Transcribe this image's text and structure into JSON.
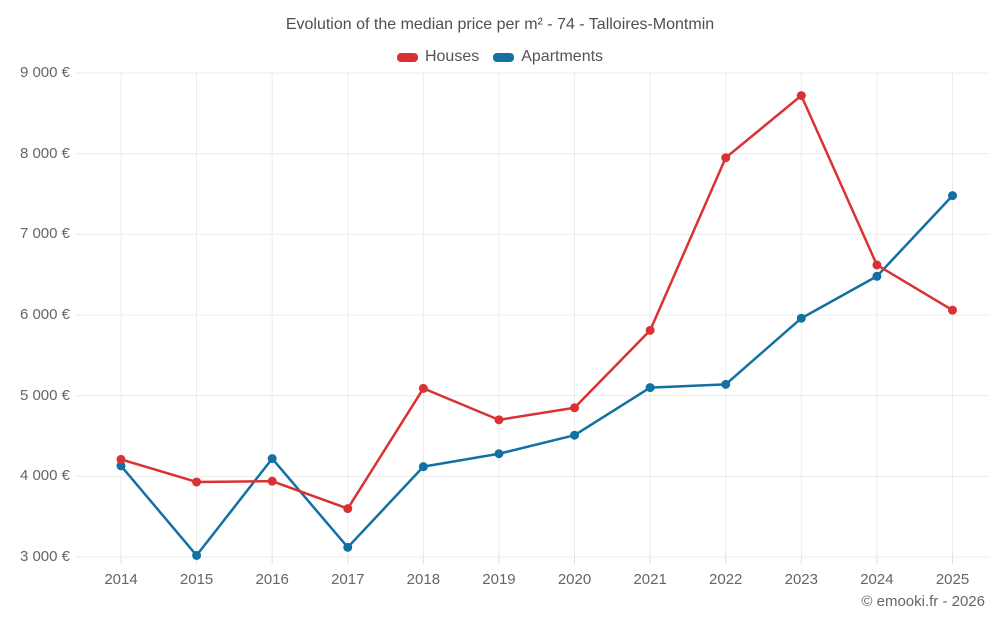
{
  "chart_data": {
    "type": "line",
    "title": "Evolution of the median price per m² - 74 - Talloires-Montmin",
    "categories": [
      "2014",
      "2015",
      "2016",
      "2017",
      "2018",
      "2019",
      "2020",
      "2021",
      "2022",
      "2023",
      "2024",
      "2025"
    ],
    "series": [
      {
        "name": "Houses",
        "color": "#da3232",
        "values": [
          4210,
          3930,
          3940,
          3600,
          5090,
          4700,
          4850,
          5810,
          7950,
          8720,
          6620,
          6060
        ]
      },
      {
        "name": "Apartments",
        "color": "#1270a2",
        "values": [
          4130,
          3020,
          4220,
          3120,
          4120,
          4280,
          4510,
          5100,
          5140,
          5960,
          6480,
          7480
        ]
      }
    ],
    "y_ticks": [
      {
        "value": 3000,
        "label": "3 000 €"
      },
      {
        "value": 4000,
        "label": "4 000 €"
      },
      {
        "value": 5000,
        "label": "5 000 €"
      },
      {
        "value": 6000,
        "label": "6 000 €"
      },
      {
        "value": 7000,
        "label": "7 000 €"
      },
      {
        "value": 8000,
        "label": "8 000 €"
      },
      {
        "value": 9000,
        "label": "9 000 €"
      }
    ],
    "ylim": [
      3000,
      9000
    ],
    "grid": true,
    "legend_position": "top",
    "grid_color": "#ebebeb",
    "marker_radius": 4.5,
    "line_width": 2.5
  },
  "footer": {
    "credit": "© emooki.fr - 2026"
  }
}
